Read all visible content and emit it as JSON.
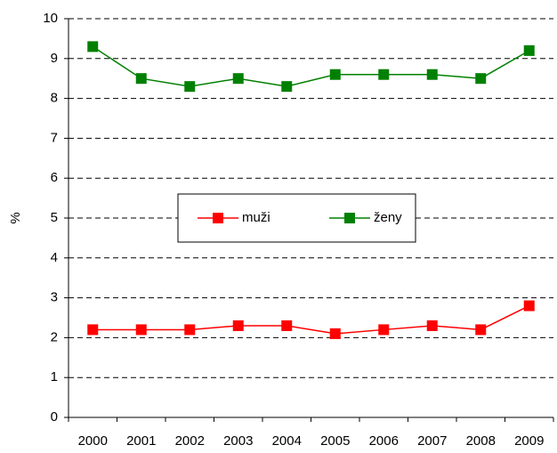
{
  "chart_data": {
    "type": "line",
    "y_label": "%",
    "categories": [
      "2000",
      "2001",
      "2002",
      "2003",
      "2004",
      "2005",
      "2006",
      "2007",
      "2008",
      "2009"
    ],
    "series": [
      {
        "name": "muži",
        "color": "#ff0000",
        "values": [
          2.2,
          2.2,
          2.2,
          2.3,
          2.3,
          2.1,
          2.2,
          2.3,
          2.2,
          2.8
        ]
      },
      {
        "name": "ženy",
        "color": "#008000",
        "values": [
          9.3,
          8.5,
          8.3,
          8.5,
          8.3,
          8.6,
          8.6,
          8.6,
          8.5,
          9.2
        ]
      }
    ],
    "ylim": [
      0,
      10
    ],
    "yticks": [
      0,
      1,
      2,
      3,
      4,
      5,
      6,
      7,
      8,
      9,
      10
    ],
    "grid": true,
    "legend": "center"
  }
}
